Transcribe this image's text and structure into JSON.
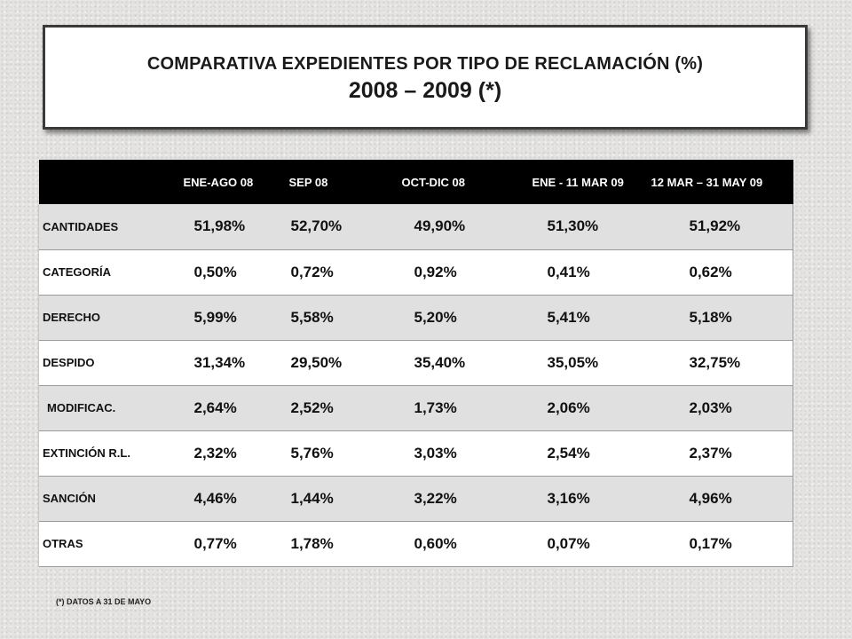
{
  "title": {
    "line1": "COMPARATIVA EXPEDIENTES POR TIPO DE RECLAMACIÓN (%)",
    "line2": "2008 – 2009 (*)"
  },
  "table": {
    "columns": [
      "",
      "ENE-AGO 08",
      "SEP 08",
      "OCT-DIC 08",
      "ENE - 11 MAR 09",
      "12 MAR – 31 MAY 09"
    ],
    "rows": [
      {
        "label": "CANTIDADES",
        "values": [
          "51,98%",
          "52,70%",
          "49,90%",
          "51,30%",
          "51,92%"
        ]
      },
      {
        "label": "CATEGORÍA",
        "values": [
          "0,50%",
          "0,72%",
          "0,92%",
          "0,41%",
          "0,62%"
        ]
      },
      {
        "label": "DERECHO",
        "values": [
          "5,99%",
          "5,58%",
          "5,20%",
          "5,41%",
          "5,18%"
        ]
      },
      {
        "label": "DESPIDO",
        "values": [
          "31,34%",
          "29,50%",
          "35,40%",
          "35,05%",
          "32,75%"
        ]
      },
      {
        "label": "MODIFICAC.",
        "values": [
          "2,64%",
          "2,52%",
          "1,73%",
          "2,06%",
          "2,03%"
        ]
      },
      {
        "label": "EXTINCIÓN R.L.",
        "values": [
          "2,32%",
          "5,76%",
          "3,03%",
          "2,54%",
          "2,37%"
        ]
      },
      {
        "label": "SANCIÓN",
        "values": [
          "4,46%",
          "1,44%",
          "3,22%",
          "3,16%",
          "4,96%"
        ]
      },
      {
        "label": "OTRAS",
        "values": [
          "0,77%",
          "1,78%",
          "0,60%",
          "0,07%",
          "0,17%"
        ]
      }
    ]
  },
  "footnote": "(*) DATOS A  31 DE MAYO"
}
